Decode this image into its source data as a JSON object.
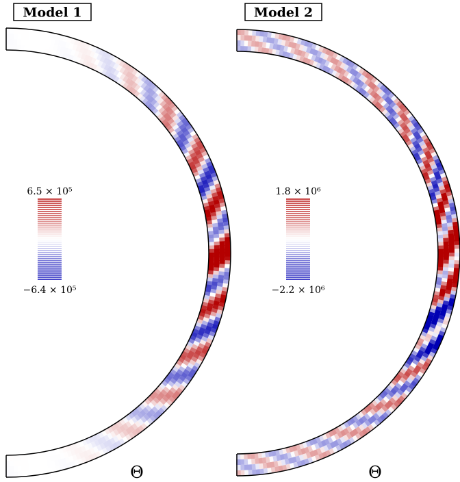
{
  "chart_data": [
    {
      "type": "contour",
      "title": "Model 1",
      "xlabel": "Θ",
      "zlim": [
        -640000,
        650000
      ],
      "zticks": [
        {
          "value": -640000,
          "label": "−6.4 × 10⁵"
        },
        {
          "value": 650000,
          "label": "6.5 × 10⁵"
        }
      ]
    },
    {
      "type": "contour",
      "title": "Model 2",
      "xlabel": "Θ",
      "zlim": [
        -2200000,
        1800000
      ],
      "zticks": [
        {
          "value": -2200000,
          "label": "−2.2 × 10⁶"
        },
        {
          "value": 1800000,
          "label": "1.8 × 10⁶"
        }
      ]
    }
  ]
}
